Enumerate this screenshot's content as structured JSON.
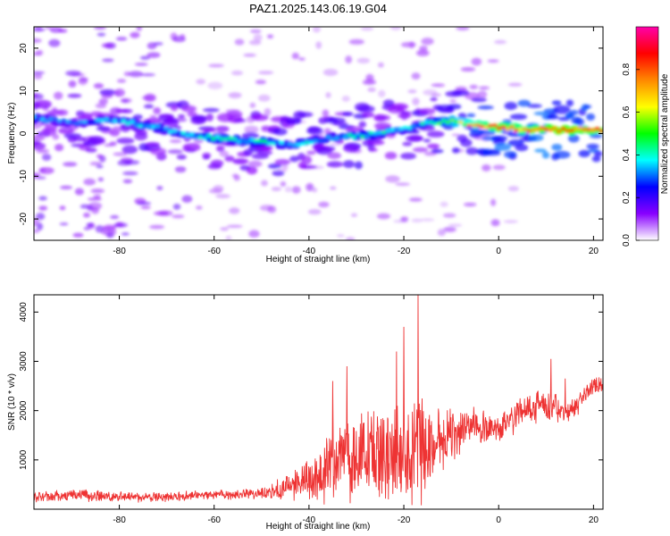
{
  "chart_data": [
    {
      "type": "heatmap",
      "title": "PAZ1.2025.143.06.19.G04",
      "xlabel": "Height of straight line (km)",
      "ylabel": "Frequency (Hz)",
      "xlim": [
        -98,
        22
      ],
      "ylim": [
        -25,
        25
      ],
      "xticks": [
        -80,
        -60,
        -40,
        -20,
        0,
        20
      ],
      "yticks": [
        -20,
        -10,
        0,
        10,
        20
      ],
      "colorbar": {
        "label": "Normalized spectral amplitude",
        "range": [
          0,
          1
        ],
        "ticks": [
          0.0,
          0.2,
          0.4,
          0.6,
          0.8
        ],
        "colormap": "hsv-reversed",
        "colors": [
          "#ffffff",
          "#8800ff",
          "#0000ff",
          "#00ffff",
          "#00ff00",
          "#ffff00",
          "#ff8800",
          "#ff0000",
          "#ff00aa"
        ]
      },
      "ridge": {
        "x": [
          -97,
          -93,
          -89,
          -85,
          -80,
          -75,
          -70,
          -65,
          -60,
          -55,
          -50,
          -45,
          -40,
          -35,
          -30,
          -25,
          -20,
          -15,
          -10,
          -5,
          0,
          5,
          10,
          15,
          20,
          22
        ],
        "frequency": [
          3.5,
          3.0,
          2.5,
          3.0,
          3.0,
          2.0,
          1.0,
          -0.5,
          -1.0,
          -1.5,
          -2.0,
          -2.5,
          -2.0,
          -1.0,
          -0.5,
          0.0,
          1.0,
          2.5,
          3.0,
          2.0,
          1.5,
          1.0,
          1.0,
          0.8,
          0.8,
          0.8
        ],
        "amplitude": [
          0.35,
          0.3,
          0.3,
          0.35,
          0.35,
          0.4,
          0.35,
          0.4,
          0.45,
          0.4,
          0.45,
          0.35,
          0.4,
          0.35,
          0.45,
          0.4,
          0.35,
          0.4,
          0.6,
          0.75,
          0.85,
          0.8,
          0.9,
          0.9,
          0.85,
          0.85
        ]
      }
    },
    {
      "type": "line",
      "xlabel": "Height of straight line (km)",
      "ylabel": "SNR (10 * v/v)",
      "xlim": [
        -98,
        22
      ],
      "ylim": [
        0,
        4350
      ],
      "xticks": [
        -80,
        -60,
        -40,
        -20,
        0,
        20
      ],
      "yticks": [
        1000,
        2000,
        3000,
        4000
      ],
      "color": "#ee3333",
      "envelope": {
        "x": [
          -98,
          -90,
          -80,
          -70,
          -60,
          -50,
          -45,
          -40,
          -35,
          -30,
          -25,
          -20,
          -17,
          -15,
          -10,
          -5,
          0,
          5,
          10,
          15,
          20,
          22
        ],
        "median": [
          250,
          280,
          250,
          240,
          300,
          300,
          450,
          650,
          900,
          1000,
          1100,
          1100,
          1200,
          1300,
          1500,
          1700,
          1600,
          2000,
          2100,
          2000,
          2500,
          2550
        ],
        "spread": [
          150,
          150,
          120,
          120,
          120,
          150,
          300,
          600,
          900,
          1000,
          1100,
          1200,
          1500,
          1000,
          600,
          400,
          350,
          400,
          400,
          300,
          200,
          200
        ]
      },
      "peaks": [
        {
          "x": -17.0,
          "y": 4350
        },
        {
          "x": -20.0,
          "y": 3700
        },
        {
          "x": -21.5,
          "y": 3200
        },
        {
          "x": -32.0,
          "y": 2900
        },
        {
          "x": -35.0,
          "y": 2600
        },
        {
          "x": 11.0,
          "y": 3050
        },
        {
          "x": 14.0,
          "y": 2650
        }
      ]
    }
  ]
}
